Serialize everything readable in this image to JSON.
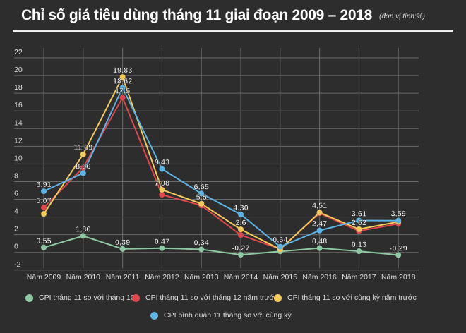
{
  "title": "Chỉ số giá tiêu dùng tháng 11  giai đoạn 2009 – 2018",
  "unit": "(đơn vị tính:%)",
  "chart_data": {
    "type": "line",
    "title": "Chỉ số giá tiêu dùng tháng 11  giai đoạn 2009 – 2018",
    "xlabel": "",
    "ylabel": "",
    "categories": [
      "Năm 2009",
      "Năm 2010",
      "Năm 2011",
      "Năm 2012",
      "Năm 2013",
      "Năm 2014",
      "Năm 2015",
      "Năm 2016",
      "Năm 2017",
      "Năm 2018"
    ],
    "ylim": [
      -2,
      22
    ],
    "yticks": [
      "-2",
      "0",
      "2",
      "4",
      "6",
      "8",
      "10",
      "12",
      "14",
      "16",
      "18",
      "20",
      "22"
    ],
    "grid": true,
    "legend": "bottom",
    "series": [
      {
        "name": "CPI tháng 11 so với tháng 10",
        "color": "#8fc9a3",
        "values": [
          0.55,
          1.86,
          0.39,
          0.47,
          0.34,
          -0.27,
          0.11,
          0.48,
          0.13,
          -0.29
        ],
        "labels": [
          "0,55",
          "1,86",
          "0,39",
          "0,47",
          "0,34",
          "-0,27",
          null,
          "0,48",
          "0,13",
          "-0,29"
        ]
      },
      {
        "name": "CPI tháng 11 so với tháng 12 năm trước",
        "color": "#e0474c",
        "values": [
          5.07,
          9.58,
          17.5,
          6.52,
          5.3,
          1.96,
          0.38,
          4.43,
          2.41,
          3.25
        ],
        "labels": [
          "5,07",
          null,
          "17,5",
          null,
          null,
          null,
          null,
          null,
          null,
          null
        ]
      },
      {
        "name": "CPI tháng 11 so với cùng kỳ năm trước",
        "color": "#f3c95a",
        "values": [
          4.35,
          11.09,
          19.83,
          7.08,
          5.5,
          2.6,
          0.34,
          4.51,
          2.62,
          3.46
        ],
        "labels": [
          null,
          "11,09",
          "19,83",
          "7,08",
          "5,5",
          "2,6",
          null,
          "4,51",
          "2,62",
          null
        ]
      },
      {
        "name": "CPI bình quân 11 tháng so với cùng kỳ",
        "color": "#5ab4e5",
        "values": [
          6.91,
          8.96,
          18.62,
          9.43,
          6.65,
          4.3,
          0.64,
          2.47,
          3.61,
          3.59
        ],
        "labels": [
          "6,91",
          "8,96",
          "18,62",
          "9,43",
          "6,65",
          "4,30",
          "0,64",
          "2,47",
          "3,61",
          "3,59"
        ]
      }
    ]
  }
}
